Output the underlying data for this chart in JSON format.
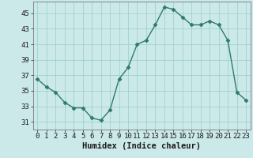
{
  "x": [
    0,
    1,
    2,
    3,
    4,
    5,
    6,
    7,
    8,
    9,
    10,
    11,
    12,
    13,
    14,
    15,
    16,
    17,
    18,
    19,
    20,
    21,
    22,
    23
  ],
  "y": [
    36.5,
    35.5,
    34.8,
    33.5,
    32.8,
    32.8,
    31.5,
    31.2,
    32.5,
    36.5,
    38.0,
    41.0,
    41.5,
    43.5,
    45.8,
    45.5,
    44.5,
    43.5,
    43.5,
    44.0,
    43.5,
    41.5,
    34.8,
    33.8
  ],
  "line_color": "#2d7a6b",
  "marker": "D",
  "marker_size": 2.5,
  "line_width": 1.0,
  "bg_color": "#cce9e9",
  "grid_color": "#99cccc",
  "tick_color": "#1a1a1a",
  "xlabel": "Humidex (Indice chaleur)",
  "xlabel_fontsize": 7.5,
  "tick_fontsize": 6.5,
  "xlim": [
    -0.5,
    23.5
  ],
  "ylim": [
    30.0,
    46.5
  ],
  "yticks": [
    31,
    33,
    35,
    37,
    39,
    41,
    43,
    45
  ],
  "xticks": [
    0,
    1,
    2,
    3,
    4,
    5,
    6,
    7,
    8,
    9,
    10,
    11,
    12,
    13,
    14,
    15,
    16,
    17,
    18,
    19,
    20,
    21,
    22,
    23
  ]
}
